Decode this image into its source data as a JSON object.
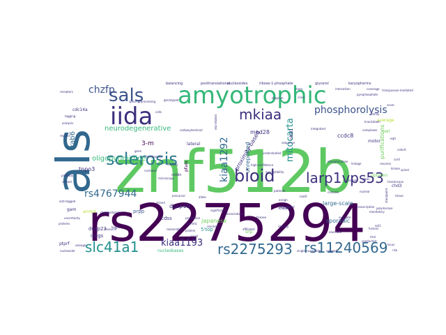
{
  "palette": {
    "dark_purple": "#440154",
    "indigo": "#3b2f7d",
    "blue": "#31688e",
    "teal": "#2a788e",
    "teal_green": "#21908d",
    "green": "#35b779",
    "light_green": "#6dcd59",
    "lime": "#b5de2b",
    "yellow": "#fde725"
  },
  "words": [
    {
      "text": "rs2275294",
      "color": "#440154"
    },
    {
      "text": "znf512b",
      "color": "#5ec962"
    },
    {
      "text": "als",
      "color": "#31688e"
    },
    {
      "text": "amyotrophic",
      "color": "#35b779"
    },
    {
      "text": "iida",
      "color": "#3b2f7d"
    },
    {
      "text": "sals",
      "color": "#3b528b"
    },
    {
      "text": "sclerosis",
      "color": "#2a788e"
    },
    {
      "text": "bioid",
      "color": "#3b2f7d"
    },
    {
      "text": "larp1vps53",
      "color": "#3b2f7d"
    },
    {
      "text": "slc41a1",
      "color": "#21908d"
    },
    {
      "text": "rs2275293",
      "color": "#31688e"
    },
    {
      "text": "rs11240569",
      "color": "#31688e"
    },
    {
      "text": "mkiaa",
      "color": "#3b2f7d"
    },
    {
      "text": "phosphorolysis",
      "color": "#3b528b"
    },
    {
      "text": "chzfp",
      "color": "#3b528b"
    },
    {
      "text": "rs4767944",
      "color": "#31688e"
    },
    {
      "text": "kiaa1193",
      "color": "#3b2f7d"
    },
    {
      "text": "kiaa1292",
      "color": "#31688e"
    },
    {
      "text": "mitocarta",
      "color": "#21908d"
    },
    {
      "text": "rab6",
      "color": "#31688e"
    },
    {
      "text": "neurodegenerative",
      "color": "#35b779"
    },
    {
      "text": "oligopyrimidine",
      "color": "#35b779"
    },
    {
      "text": "tnpo3",
      "color": "#3b2f7d"
    },
    {
      "text": "3-m",
      "color": "#440154"
    },
    {
      "text": "purifications",
      "color": "#6dcd59"
    },
    {
      "text": "ccdc8",
      "color": "#3b2f7d"
    },
    {
      "text": "med28",
      "color": "#3b2f7d"
    },
    {
      "text": "unreported",
      "color": "#31688e"
    },
    {
      "text": "obsl1",
      "color": "#3b2f7d"
    },
    {
      "text": "proximity-based",
      "color": "#3b2f7d"
    },
    {
      "text": "large-scale",
      "color": "#31688e"
    },
    {
      "text": "sporadic",
      "color": "#31688e"
    },
    {
      "text": "japanese",
      "color": "#6dcd59"
    },
    {
      "text": "dusp19",
      "color": "#3b2f7d"
    },
    {
      "text": "dusp23",
      "color": "#3b2f7d"
    },
    {
      "text": "prpp",
      "color": "#3b528b"
    },
    {
      "text": "icogs",
      "color": "#3b2f7d"
    },
    {
      "text": "5'top",
      "color": "#21908d"
    },
    {
      "text": "nucleobases",
      "color": "#35b779"
    },
    {
      "text": "cdss",
      "color": "#3b2f7d"
    },
    {
      "text": "cdc14a",
      "color": "#3b2f7d"
    },
    {
      "text": "motor",
      "color": "#3b2f7d"
    },
    {
      "text": "average",
      "color": "#b5de2b"
    },
    {
      "text": "uptaken",
      "color": "#6dcd59"
    },
    {
      "text": "owl",
      "color": "#6dcd59"
    },
    {
      "text": "chd3",
      "color": "#3b2f7d"
    },
    {
      "text": "kiaas",
      "color": "#3b2f7d"
    },
    {
      "text": "ptprf",
      "color": "#3b2f7d"
    },
    {
      "text": "anmol",
      "color": "#b5de2b"
    },
    {
      "text": "pfam",
      "color": "#440154"
    },
    {
      "text": "snp",
      "color": "#6dcd59"
    },
    {
      "text": "gam",
      "color": "#3b2f7d"
    },
    {
      "text": "lateral",
      "color": "#3b2f7d"
    },
    {
      "text": "balancing",
      "color": "#3b2f7d"
    },
    {
      "text": "ribose-1-phosphate",
      "color": "#3b2f7d"
    },
    {
      "text": "posttranslational",
      "color": "#3b2f7d"
    },
    {
      "text": "nucleosides",
      "color": "#3b2f7d"
    },
    {
      "text": "glycerol",
      "color": "#3b2f7d"
    },
    {
      "text": "karyopherins",
      "color": "#3b2f7d"
    },
    {
      "text": "splicing/processing",
      "color": "#3b2f7d"
    },
    {
      "text": "single-nucleotide",
      "color": "#3b2f7d"
    },
    {
      "text": "network",
      "color": "#3b2f7d"
    },
    {
      "text": "phosphorylase",
      "color": "#3b2f7d"
    },
    {
      "text": "high-confidence",
      "color": "#3b2f7d"
    },
    {
      "text": "understudied",
      "color": "#3b2f7d"
    },
    {
      "text": "susceptibility",
      "color": "#3b2f7d"
    },
    {
      "text": "genotyped",
      "color": "#3b2f7d"
    },
    {
      "text": "polymerase",
      "color": "#3b2f7d"
    },
    {
      "text": "transcription",
      "color": "#3b2f7d"
    },
    {
      "text": "standpoint",
      "color": "#3b2f7d"
    },
    {
      "text": "reached",
      "color": "#3b2f7d"
    },
    {
      "text": "onset",
      "color": "#3b2f7d"
    },
    {
      "text": "significance",
      "color": "#3b2f7d"
    },
    {
      "text": "associations",
      "color": "#3b2f7d"
    },
    {
      "text": "allele",
      "color": "#3b2f7d"
    },
    {
      "text": "assign",
      "color": "#3b2f7d"
    },
    {
      "text": "elucidate",
      "color": "#3b2f7d"
    },
    {
      "text": "affiliated",
      "color": "#3b2f7d"
    },
    {
      "text": "uncertainty",
      "color": "#3b2f7d"
    },
    {
      "text": "chromodomain",
      "color": "#3b2f7d"
    },
    {
      "text": "carboxyterminal",
      "color": "#3b2f7d"
    },
    {
      "text": "eta-related",
      "color": "#3b2f7d"
    },
    {
      "text": "identity",
      "color": "#3b2f7d"
    },
    {
      "text": "kappa",
      "color": "#3b2f7d"
    },
    {
      "text": "reasonable",
      "color": "#3b2f7d"
    },
    {
      "text": "annotated",
      "color": "#3b2f7d"
    },
    {
      "text": "trial",
      "color": "#3b2f7d"
    },
    {
      "text": "strand",
      "color": "#3b2f7d"
    },
    {
      "text": "sat1",
      "color": "#3b2f7d"
    },
    {
      "text": "mandatory",
      "color": "#3b2f7d"
    },
    {
      "text": "fusions",
      "color": "#3b2f7d"
    },
    {
      "text": "conducted",
      "color": "#3b2f7d"
    },
    {
      "text": "pyrophosphate",
      "color": "#3b2f7d"
    },
    {
      "text": "transposase-mediated",
      "color": "#3b2f7d"
    },
    {
      "text": "anti-tagged",
      "color": "#3b2f7d"
    },
    {
      "text": "knockdown",
      "color": "#3b2f7d"
    },
    {
      "text": "nuclear",
      "color": "#3b2f7d"
    },
    {
      "text": "translocase",
      "color": "#3b2f7d"
    },
    {
      "text": "complexes",
      "color": "#3b2f7d"
    },
    {
      "text": "integrated",
      "color": "#3b2f7d"
    },
    {
      "text": "receptors",
      "color": "#3b2f7d"
    },
    {
      "text": "resource",
      "color": "#3b2f7d"
    },
    {
      "text": "population",
      "color": "#3b2f7d"
    },
    {
      "text": "evaluate",
      "color": "#3b2f7d"
    },
    {
      "text": "precursor",
      "color": "#3b2f7d"
    },
    {
      "text": "microscopy",
      "color": "#3b2f7d"
    },
    {
      "text": "mtDNA",
      "color": "#3b2f7d"
    },
    {
      "text": "nuclease",
      "color": "#3b2f7d"
    },
    {
      "text": "functionally",
      "color": "#3b2f7d"
    },
    {
      "text": "nucleoside",
      "color": "#3b2f7d"
    },
    {
      "text": "salvage",
      "color": "#3b2f7d"
    },
    {
      "text": "diagram",
      "color": "#3b2f7d"
    },
    {
      "text": "cross",
      "color": "#3b2f7d"
    },
    {
      "text": "kinase",
      "color": "#3b2f7d"
    },
    {
      "text": "linkage",
      "color": "#3b2f7d"
    },
    {
      "text": "tagging",
      "color": "#3b2f7d"
    },
    {
      "text": "pathway",
      "color": "#3b2f7d"
    },
    {
      "text": "regions",
      "color": "#3b2f7d"
    },
    {
      "text": "gene",
      "color": "#3b2f7d"
    },
    {
      "text": "protein",
      "color": "#3b2f7d"
    },
    {
      "text": "proteins",
      "color": "#3b2f7d"
    },
    {
      "text": "genetic",
      "color": "#3b2f7d"
    },
    {
      "text": "mass",
      "color": "#3b2f7d"
    },
    {
      "text": "interaction",
      "color": "#3b2f7d"
    },
    {
      "text": "coverage",
      "color": "#3b2f7d"
    },
    {
      "text": "analysis",
      "color": "#3b2f7d"
    },
    {
      "text": "variant",
      "color": "#3b2f7d"
    },
    {
      "text": "tissue",
      "color": "#3b2f7d"
    },
    {
      "text": "cells",
      "color": "#3b2f7d"
    },
    {
      "text": "binding",
      "color": "#3b2f7d"
    },
    {
      "text": "disease",
      "color": "#3b2f7d"
    },
    {
      "text": "motif",
      "color": "#3b2f7d"
    },
    {
      "text": "sequence",
      "color": "#3b2f7d"
    },
    {
      "text": "patients",
      "color": "#3b2f7d"
    },
    {
      "text": "controls",
      "color": "#3b2f7d"
    },
    {
      "text": "sample",
      "color": "#3b2f7d"
    },
    {
      "text": "cohort",
      "color": "#3b2f7d"
    },
    {
      "text": "locus",
      "color": "#3b2f7d"
    },
    {
      "text": "risk",
      "color": "#3b2f7d"
    },
    {
      "text": "score",
      "color": "#3b2f7d"
    },
    {
      "text": "family",
      "color": "#3b2f7d"
    },
    {
      "text": "eqtl",
      "color": "#3b2f7d"
    },
    {
      "text": "gwas",
      "color": "#3b2f7d"
    },
    {
      "text": "neurons",
      "color": "#3b2f7d"
    },
    {
      "text": "spinal",
      "color": "#3b2f7d"
    },
    {
      "text": "cord",
      "color": "#3b2f7d"
    },
    {
      "text": "brain",
      "color": "#3b2f7d"
    }
  ]
}
